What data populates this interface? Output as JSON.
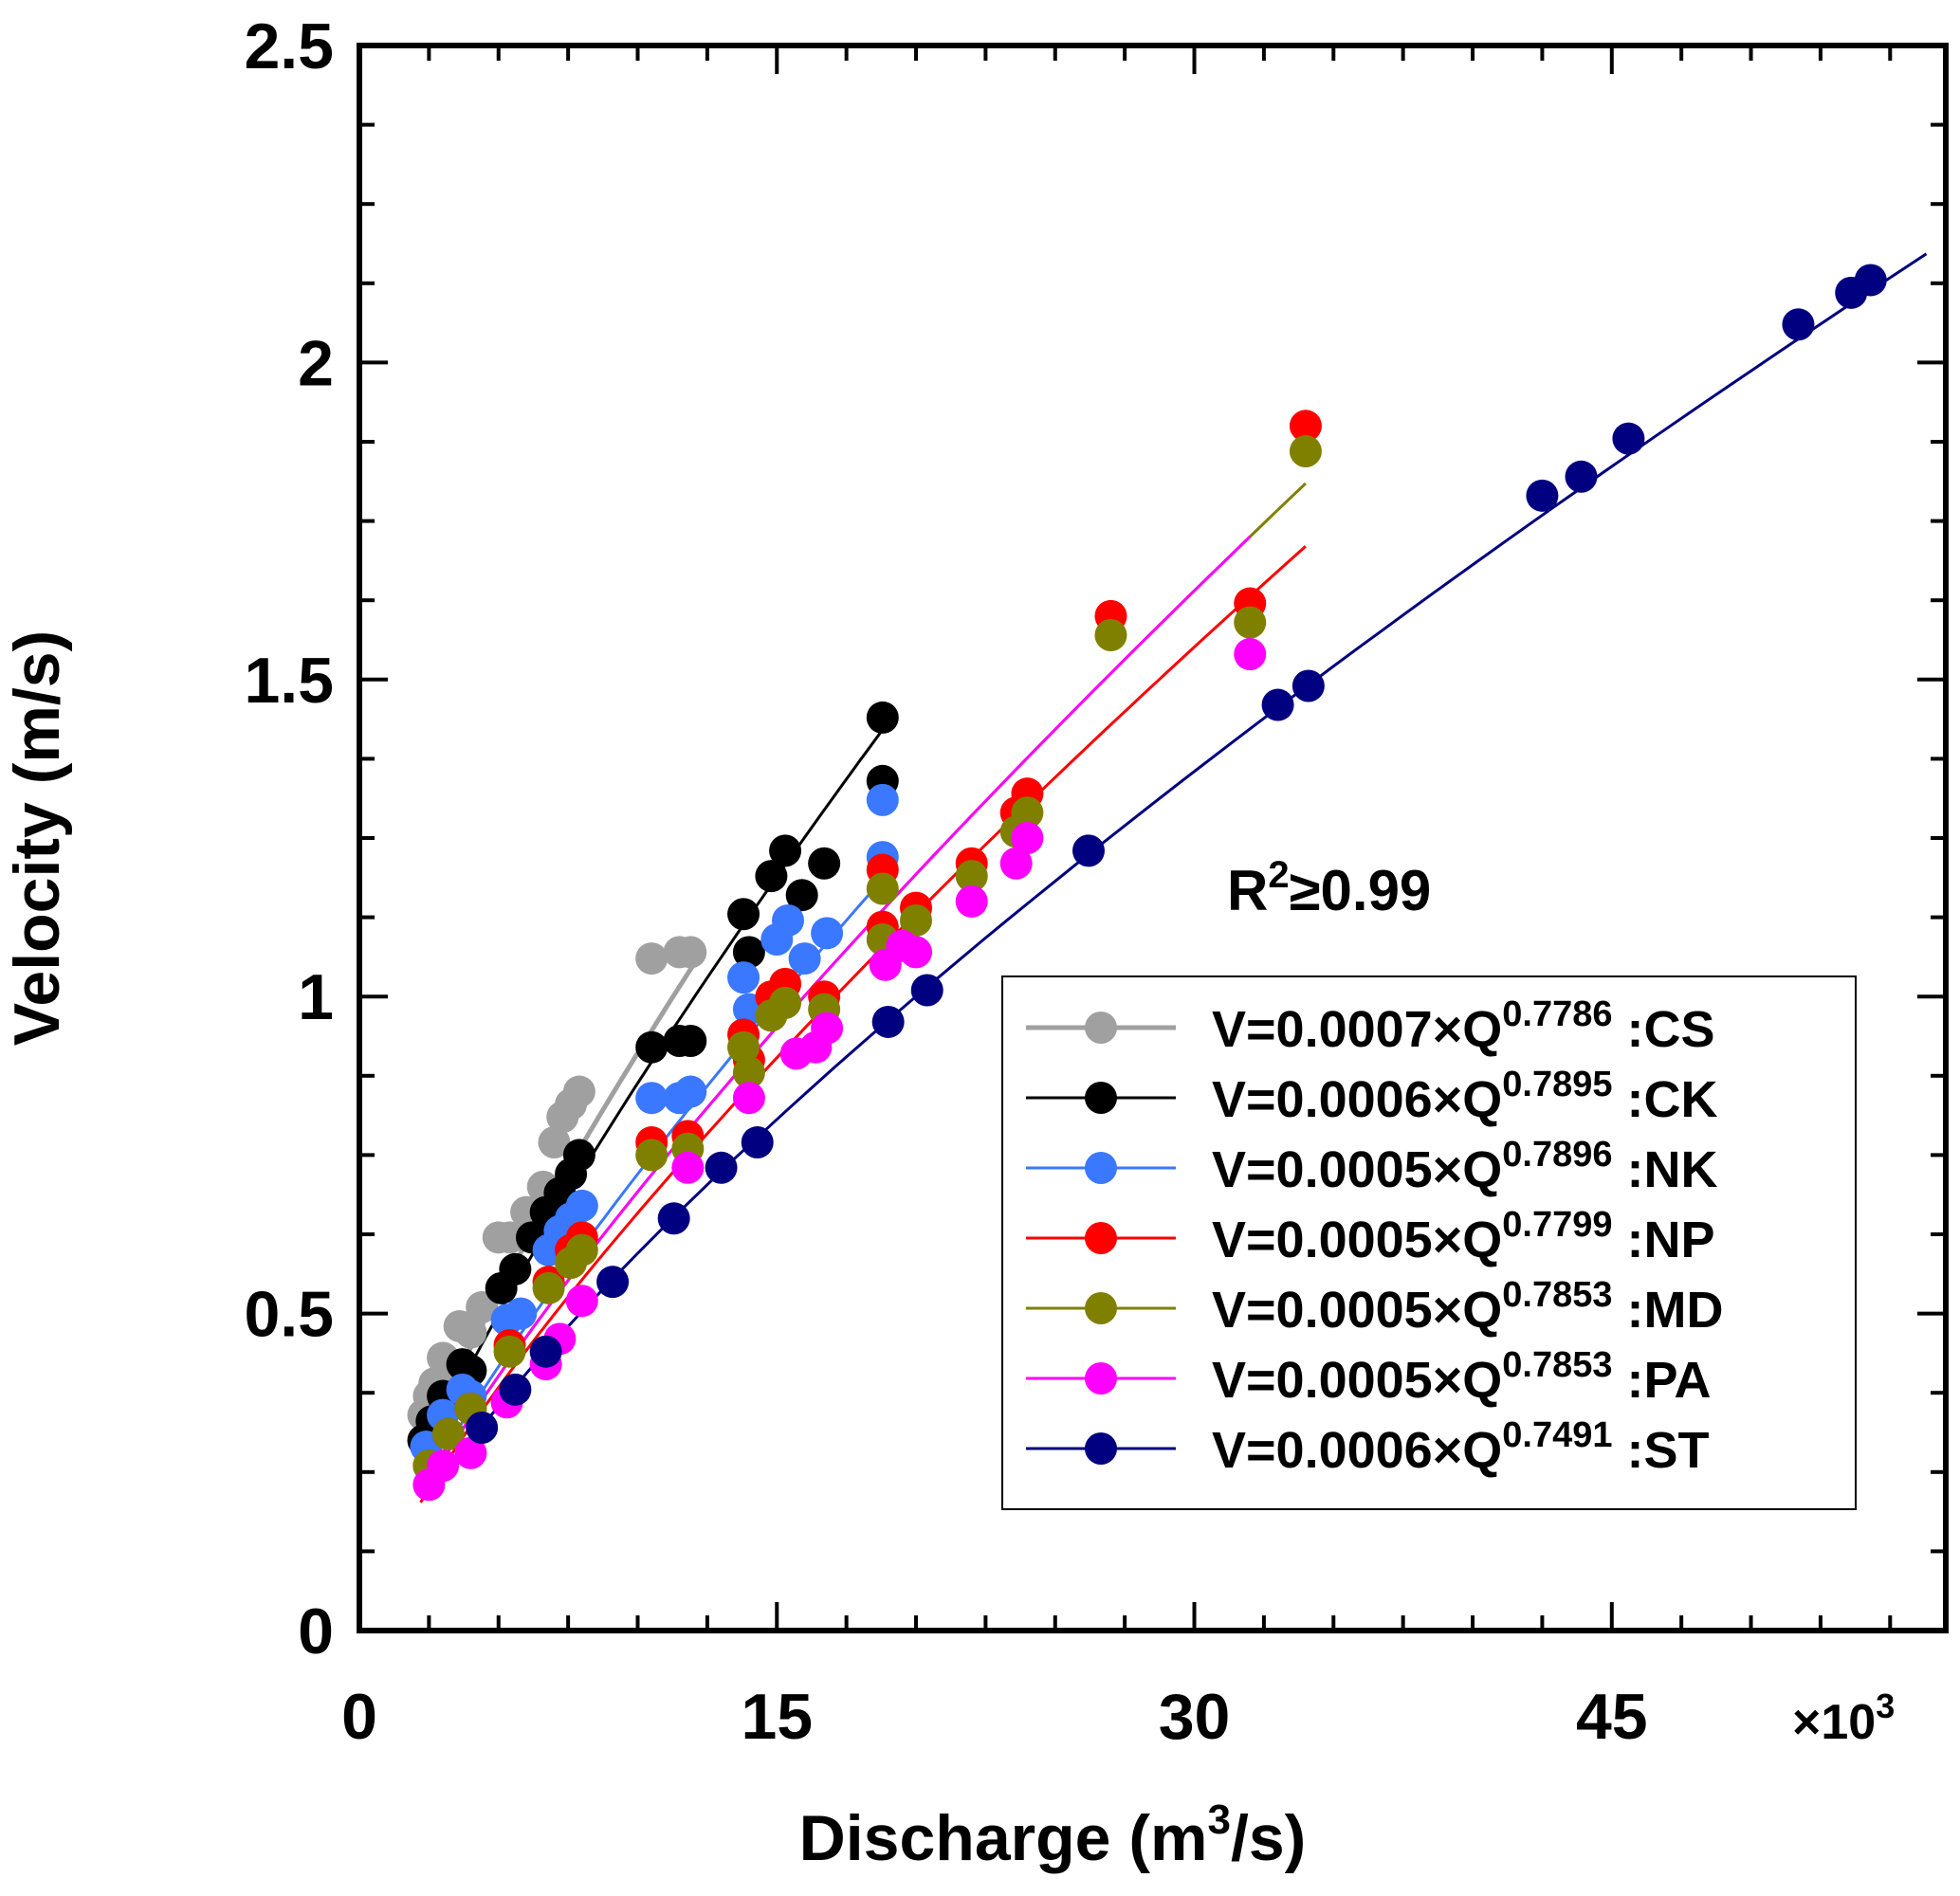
{
  "chart_data": {
    "type": "scatter",
    "xlabel": "Discharge (m",
    "xlabel_sup": "3",
    "xlabel_end": "/s)",
    "ylabel": "Velocity (m/s)",
    "x_multiplier_prefix": "×10",
    "x_multiplier_exp": "3",
    "xlim": [
      0,
      57
    ],
    "ylim": [
      0,
      2.5
    ],
    "x_ticks": [
      0,
      15,
      30,
      45
    ],
    "y_ticks": [
      0,
      0.5,
      1,
      1.5,
      2,
      2.5
    ],
    "x_tick_labels": [
      "0",
      "15",
      "30",
      "45"
    ],
    "y_tick_labels": [
      "0",
      "0.5",
      "1",
      "1.5",
      "2",
      "2.5"
    ],
    "annotation": {
      "prefix": "R",
      "sup": "2",
      "suffix": "≥0.99"
    },
    "series": [
      {
        "id": "CS",
        "name_prefix": "V=0.0007×Q",
        "name_exp": "0.7786",
        "name_suffix": " :CS",
        "color": "#a0a0a0",
        "coef": 0.0007,
        "exp": 0.7786,
        "fit_range": [
          2.2,
          12.0
        ],
        "points": [
          [
            2.3,
            0.34
          ],
          [
            2.5,
            0.37
          ],
          [
            2.7,
            0.39
          ],
          [
            3.0,
            0.43
          ],
          [
            3.2,
            0.42
          ],
          [
            3.6,
            0.48
          ],
          [
            4.0,
            0.47
          ],
          [
            4.4,
            0.51
          ],
          [
            5.0,
            0.62
          ],
          [
            5.4,
            0.62
          ],
          [
            6.0,
            0.66
          ],
          [
            6.6,
            0.7
          ],
          [
            7.0,
            0.77
          ],
          [
            7.3,
            0.81
          ],
          [
            7.6,
            0.83
          ],
          [
            7.9,
            0.85
          ],
          [
            10.5,
            1.06
          ],
          [
            11.5,
            1.07
          ],
          [
            11.9,
            1.07
          ]
        ]
      },
      {
        "id": "CK",
        "name_prefix": "V=0.0006×Q",
        "name_exp": "0.7895",
        "name_suffix": " :CK",
        "color": "#000000",
        "coef": 0.0006,
        "exp": 0.7895,
        "fit_range": [
          2.2,
          18.8
        ],
        "points": [
          [
            2.3,
            0.3
          ],
          [
            2.6,
            0.33
          ],
          [
            3.0,
            0.37
          ],
          [
            3.7,
            0.42
          ],
          [
            4.0,
            0.41
          ],
          [
            5.1,
            0.54
          ],
          [
            5.6,
            0.57
          ],
          [
            6.2,
            0.62
          ],
          [
            6.7,
            0.66
          ],
          [
            7.2,
            0.69
          ],
          [
            7.6,
            0.72
          ],
          [
            7.9,
            0.75
          ],
          [
            10.5,
            0.92
          ],
          [
            11.5,
            0.93
          ],
          [
            11.9,
            0.93
          ],
          [
            13.8,
            1.13
          ],
          [
            14.0,
            1.07
          ],
          [
            14.8,
            1.19
          ],
          [
            15.3,
            1.23
          ],
          [
            15.9,
            1.16
          ],
          [
            16.7,
            1.21
          ],
          [
            18.8,
            1.34
          ],
          [
            18.8,
            1.44
          ]
        ]
      },
      {
        "id": "NK",
        "name_prefix": "V=0.0005×Q",
        "name_exp": "0.7896",
        "name_suffix": " :NK",
        "color": "#3a78ff",
        "coef": 0.0005,
        "exp": 0.7896,
        "fit_range": [
          2.2,
          18.8
        ],
        "points": [
          [
            2.4,
            0.29
          ],
          [
            3.0,
            0.34
          ],
          [
            3.7,
            0.38
          ],
          [
            4.0,
            0.37
          ],
          [
            5.3,
            0.49
          ],
          [
            5.8,
            0.5
          ],
          [
            6.8,
            0.6
          ],
          [
            7.2,
            0.63
          ],
          [
            7.6,
            0.65
          ],
          [
            8.0,
            0.67
          ],
          [
            10.5,
            0.84
          ],
          [
            11.5,
            0.84
          ],
          [
            11.9,
            0.85
          ],
          [
            13.8,
            1.03
          ],
          [
            14.0,
            0.98
          ],
          [
            15.0,
            1.09
          ],
          [
            15.4,
            1.12
          ],
          [
            16.0,
            1.06
          ],
          [
            16.8,
            1.1
          ],
          [
            18.8,
            1.22
          ],
          [
            18.8,
            1.31
          ]
        ]
      },
      {
        "id": "NP",
        "name_prefix": "V=0.0005×Q",
        "name_exp": "0.7799",
        "name_suffix": " :NP",
        "color": "#ff0000",
        "coef": 0.0005,
        "exp": 0.7799,
        "fit_range": [
          2.2,
          34.0
        ],
        "points": [
          [
            2.5,
            0.26
          ],
          [
            3.2,
            0.31
          ],
          [
            4.0,
            0.35
          ],
          [
            5.4,
            0.45
          ],
          [
            6.8,
            0.55
          ],
          [
            7.6,
            0.6
          ],
          [
            8.0,
            0.62
          ],
          [
            10.5,
            0.77
          ],
          [
            11.8,
            0.78
          ],
          [
            13.8,
            0.94
          ],
          [
            14.0,
            0.9
          ],
          [
            14.8,
            1.0
          ],
          [
            15.3,
            1.02
          ],
          [
            16.7,
            1.0
          ],
          [
            18.8,
            1.2
          ],
          [
            18.8,
            1.11
          ],
          [
            20.0,
            1.14
          ],
          [
            22.0,
            1.21
          ],
          [
            23.6,
            1.29
          ],
          [
            24.0,
            1.32
          ],
          [
            27.0,
            1.6
          ],
          [
            32.0,
            1.62
          ],
          [
            34.0,
            1.9
          ]
        ]
      },
      {
        "id": "MD",
        "name_prefix": "V=0.0005×Q",
        "name_exp": "0.7853",
        "name_suffix": " :MD",
        "color": "#808000",
        "coef": 0.0005,
        "exp": 0.7853,
        "fit_range": [
          2.2,
          34.0
        ],
        "points": [
          [
            2.5,
            0.26
          ],
          [
            3.2,
            0.31
          ],
          [
            4.0,
            0.35
          ],
          [
            5.4,
            0.44
          ],
          [
            6.8,
            0.54
          ],
          [
            7.6,
            0.58
          ],
          [
            8.0,
            0.6
          ],
          [
            10.5,
            0.75
          ],
          [
            11.8,
            0.76
          ],
          [
            13.8,
            0.92
          ],
          [
            14.0,
            0.88
          ],
          [
            14.8,
            0.97
          ],
          [
            15.3,
            0.99
          ],
          [
            16.7,
            0.98
          ],
          [
            18.8,
            1.17
          ],
          [
            18.8,
            1.09
          ],
          [
            20.0,
            1.12
          ],
          [
            22.0,
            1.19
          ],
          [
            23.6,
            1.26
          ],
          [
            24.0,
            1.29
          ],
          [
            27.0,
            1.57
          ],
          [
            32.0,
            1.59
          ],
          [
            34.0,
            1.86
          ]
        ]
      },
      {
        "id": "PA",
        "name_prefix": "V=0.0005×Q",
        "name_exp": "0.7853",
        "name_suffix": " :PA",
        "color": "#ff00ff",
        "coef": 0.0005,
        "exp": 0.7853,
        "fit_range": [
          2.2,
          32.0
        ],
        "points": [
          [
            2.5,
            0.23
          ],
          [
            3.0,
            0.26
          ],
          [
            4.0,
            0.28
          ],
          [
            5.3,
            0.36
          ],
          [
            6.7,
            0.42
          ],
          [
            7.2,
            0.46
          ],
          [
            8.0,
            0.52
          ],
          [
            11.8,
            0.73
          ],
          [
            14.0,
            0.84
          ],
          [
            15.7,
            0.91
          ],
          [
            16.4,
            0.92
          ],
          [
            16.8,
            0.95
          ],
          [
            18.9,
            1.05
          ],
          [
            19.5,
            1.08
          ],
          [
            20.0,
            1.07
          ],
          [
            22.0,
            1.15
          ],
          [
            23.6,
            1.21
          ],
          [
            24.0,
            1.25
          ],
          [
            32.0,
            1.54
          ]
        ]
      },
      {
        "id": "ST",
        "name_prefix": "V=0.0006×Q",
        "name_exp": "0.7491",
        "name_suffix": " :ST",
        "color": "#000080",
        "coef": 0.0006,
        "exp": 0.7491,
        "fit_range": [
          2.8,
          56.3
        ],
        "points": [
          [
            4.4,
            0.32
          ],
          [
            5.6,
            0.38
          ],
          [
            6.7,
            0.44
          ],
          [
            9.1,
            0.55
          ],
          [
            11.3,
            0.65
          ],
          [
            13.0,
            0.73
          ],
          [
            14.3,
            0.77
          ],
          [
            19.0,
            0.96
          ],
          [
            20.4,
            1.01
          ],
          [
            26.2,
            1.23
          ],
          [
            33.0,
            1.46
          ],
          [
            34.1,
            1.49
          ],
          [
            42.5,
            1.79
          ],
          [
            43.9,
            1.82
          ],
          [
            45.6,
            1.88
          ],
          [
            51.7,
            2.06
          ],
          [
            53.6,
            2.11
          ],
          [
            54.3,
            2.13
          ]
        ]
      }
    ]
  }
}
